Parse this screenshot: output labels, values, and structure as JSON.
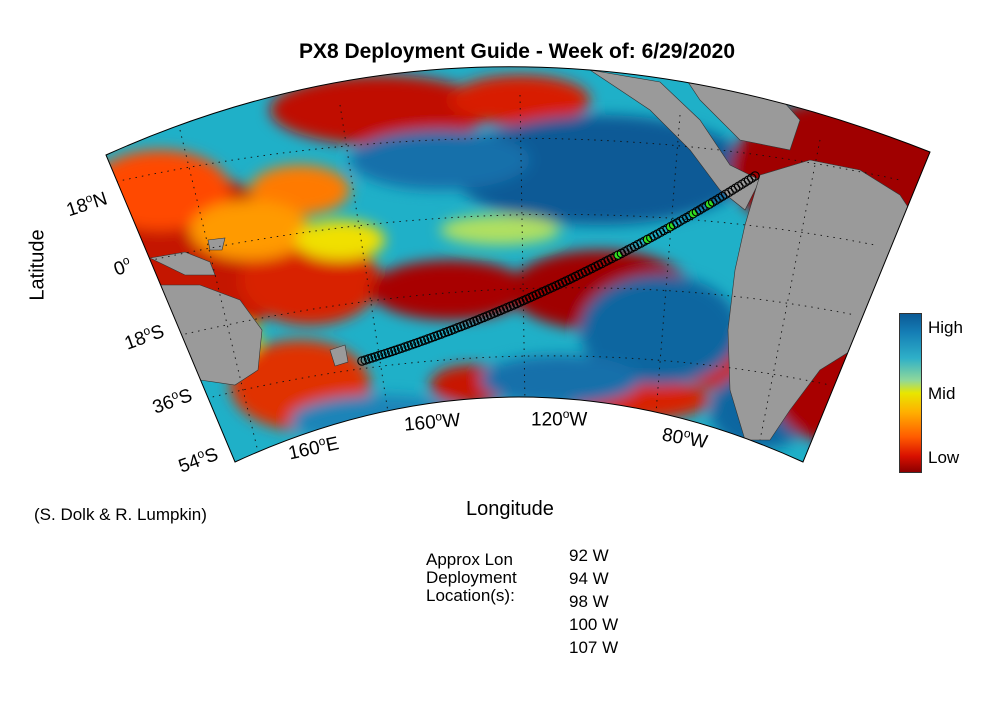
{
  "title": "PX8 Deployment Guide - Week of: 6/29/2020",
  "axes": {
    "xlabel": "Longitude",
    "ylabel": "Latitude",
    "lat_ticks": [
      {
        "deg": "18",
        "hemi": "N"
      },
      {
        "deg": "0",
        "hemi": ""
      },
      {
        "deg": "18",
        "hemi": "S"
      },
      {
        "deg": "36",
        "hemi": "S"
      },
      {
        "deg": "54",
        "hemi": "S"
      }
    ],
    "lon_ticks": [
      {
        "deg": "160",
        "hemi": "E"
      },
      {
        "deg": "160",
        "hemi": "W"
      },
      {
        "deg": "120",
        "hemi": "W"
      },
      {
        "deg": "80",
        "hemi": "W"
      }
    ]
  },
  "colorbar": {
    "labels": [
      "High",
      "Mid",
      "Low"
    ],
    "colors": [
      "#0b5a96",
      "#e8e600",
      "#8c0000"
    ]
  },
  "credit": "(S. Dolk & R. Lumpkin)",
  "deployment": {
    "label_lines": [
      "Approx Lon",
      "Deployment",
      "Location(s):"
    ],
    "longitudes": [
      "92 W",
      "94 W",
      "98 W",
      "100 W",
      "107 W"
    ]
  },
  "colors": {
    "land": "#9a9a9a",
    "ocean_high": "#0b66a0",
    "ocean_low": "#8c0000",
    "track_marker": "#000000",
    "deployment_marker": "#33dd22"
  }
}
